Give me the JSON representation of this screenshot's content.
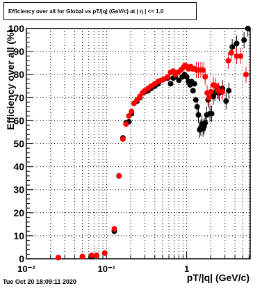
{
  "chart_data": {
    "type": "scatter",
    "title": "Efficiency over all for Global vs pT/|q| (GeV/c) at | η | <= 1.0",
    "xlabel": "pT/|q| (GeV/c)",
    "ylabel": "Efficiency over all (%)",
    "xscale": "log",
    "xlim": [
      0.01,
      6.2
    ],
    "ylim": [
      0,
      100
    ],
    "x_tick_labels": [
      "10⁻²",
      "10⁻¹",
      "1"
    ],
    "y_ticks": [
      0,
      10,
      20,
      30,
      40,
      50,
      60,
      70,
      80,
      90,
      100
    ],
    "y_tick_labels": [
      "0",
      "10",
      "20",
      "30",
      "40",
      "50",
      "60",
      "70",
      "80",
      "90",
      "100"
    ],
    "grid": true,
    "series": [
      {
        "color": "#000000",
        "points": [
          [
            0.025,
            0.5
          ],
          [
            0.05,
            1.0
          ],
          [
            0.065,
            1.0
          ],
          [
            0.075,
            1.5
          ],
          [
            0.095,
            2.5
          ],
          [
            0.125,
            12
          ],
          [
            0.143,
            36
          ],
          [
            0.16,
            52.5
          ],
          [
            0.175,
            59
          ],
          [
            0.19,
            59.5
          ],
          [
            0.205,
            63
          ],
          [
            0.22,
            67.5
          ],
          [
            0.24,
            68.5
          ],
          [
            0.26,
            70
          ],
          [
            0.28,
            72
          ],
          [
            0.3,
            72.5
          ],
          [
            0.33,
            73
          ],
          [
            0.36,
            74
          ],
          [
            0.4,
            75
          ],
          [
            0.44,
            76
          ],
          [
            0.48,
            77.5
          ],
          [
            0.52,
            78
          ],
          [
            0.58,
            78.5
          ],
          [
            0.63,
            76
          ],
          [
            0.68,
            78.5
          ],
          [
            0.72,
            79
          ],
          [
            0.8,
            77.5
          ],
          [
            0.88,
            79
          ],
          [
            0.94,
            80
          ],
          [
            1.0,
            79
          ],
          [
            1.05,
            77
          ],
          [
            1.1,
            75.5
          ],
          [
            1.15,
            77
          ],
          [
            1.2,
            73
          ],
          [
            1.25,
            76
          ],
          [
            1.3,
            69
          ],
          [
            1.35,
            66
          ],
          [
            1.4,
            62.5
          ],
          [
            1.45,
            56
          ],
          [
            1.5,
            57
          ],
          [
            1.55,
            58.5
          ],
          [
            1.6,
            56.5
          ],
          [
            1.65,
            57.5
          ],
          [
            1.7,
            59
          ],
          [
            1.78,
            62.5
          ],
          [
            1.85,
            69
          ],
          [
            1.95,
            63
          ],
          [
            2.05,
            63
          ],
          [
            2.15,
            70.5
          ],
          [
            2.25,
            72
          ],
          [
            2.4,
            73
          ],
          [
            2.55,
            72
          ],
          [
            2.8,
            74
          ],
          [
            3.1,
            68.5
          ],
          [
            3.35,
            73
          ],
          [
            3.7,
            92
          ],
          [
            4.2,
            93.5
          ],
          [
            5.2,
            95
          ],
          [
            5.8,
            100
          ]
        ]
      },
      {
        "color": "#ff0000",
        "points": [
          [
            0.025,
            0.5
          ],
          [
            0.05,
            1.0
          ],
          [
            0.065,
            1.5
          ],
          [
            0.075,
            1.5
          ],
          [
            0.095,
            2.5
          ],
          [
            0.125,
            13
          ],
          [
            0.143,
            36
          ],
          [
            0.16,
            52
          ],
          [
            0.175,
            58.5
          ],
          [
            0.19,
            62
          ],
          [
            0.205,
            64
          ],
          [
            0.22,
            67.5
          ],
          [
            0.24,
            69
          ],
          [
            0.26,
            70.5
          ],
          [
            0.28,
            72
          ],
          [
            0.3,
            73
          ],
          [
            0.33,
            74
          ],
          [
            0.36,
            75
          ],
          [
            0.4,
            76
          ],
          [
            0.44,
            77
          ],
          [
            0.48,
            77.5
          ],
          [
            0.52,
            78
          ],
          [
            0.58,
            79
          ],
          [
            0.63,
            81
          ],
          [
            0.68,
            81.5
          ],
          [
            0.72,
            80
          ],
          [
            0.78,
            81
          ],
          [
            0.85,
            82
          ],
          [
            0.9,
            83
          ],
          [
            0.95,
            84
          ],
          [
            1.0,
            83.5
          ],
          [
            1.06,
            82.5
          ],
          [
            1.12,
            83.5
          ],
          [
            1.18,
            82.5
          ],
          [
            1.25,
            82.5
          ],
          [
            1.32,
            82
          ],
          [
            1.4,
            82
          ],
          [
            1.5,
            82
          ],
          [
            1.6,
            82
          ],
          [
            1.7,
            79
          ],
          [
            1.8,
            72
          ],
          [
            1.9,
            70
          ],
          [
            2.0,
            72.5
          ],
          [
            2.15,
            75.5
          ],
          [
            2.3,
            75
          ],
          [
            2.5,
            73
          ],
          [
            2.8,
            72.5
          ],
          [
            3.3,
            86
          ],
          [
            3.6,
            89.5
          ],
          [
            4.2,
            88
          ],
          [
            4.7,
            88
          ],
          [
            5.5,
            80
          ]
        ]
      }
    ]
  },
  "timestamp": "Tue Oct 20 18:09:11 2020"
}
